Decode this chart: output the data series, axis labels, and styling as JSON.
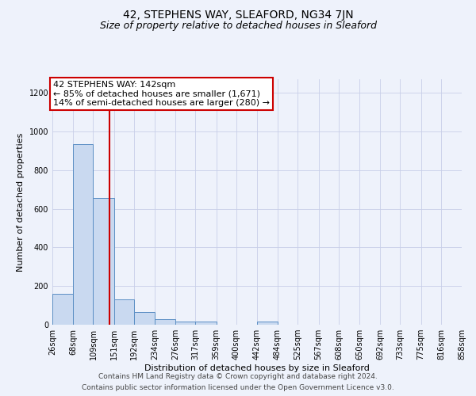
{
  "title": "42, STEPHENS WAY, SLEAFORD, NG34 7JN",
  "subtitle": "Size of property relative to detached houses in Sleaford",
  "xlabel": "Distribution of detached houses by size in Sleaford",
  "ylabel": "Number of detached properties",
  "bin_edges": [
    26,
    68,
    109,
    151,
    192,
    234,
    276,
    317,
    359,
    400,
    442,
    484,
    525,
    567,
    608,
    650,
    692,
    733,
    775,
    816,
    858
  ],
  "bar_heights": [
    160,
    935,
    655,
    130,
    65,
    30,
    15,
    15,
    0,
    0,
    15,
    0,
    0,
    0,
    0,
    0,
    0,
    0,
    0,
    0
  ],
  "bar_color": "#c9d9f0",
  "bar_edge_color": "#5b8ec4",
  "red_line_x": 142,
  "red_line_color": "#cc0000",
  "ylim": [
    0,
    1270
  ],
  "annotation_title": "42 STEPHENS WAY: 142sqm",
  "annotation_line1": "← 85% of detached houses are smaller (1,671)",
  "annotation_line2": "14% of semi-detached houses are larger (280) →",
  "annotation_box_color": "#ffffff",
  "annotation_border_color": "#cc0000",
  "background_color": "#eef2fb",
  "footer_line1": "Contains HM Land Registry data © Crown copyright and database right 2024.",
  "footer_line2": "Contains public sector information licensed under the Open Government Licence v3.0.",
  "grid_color": "#c8cfe8",
  "title_fontsize": 10,
  "subtitle_fontsize": 9,
  "axis_label_fontsize": 8,
  "tick_fontsize": 7,
  "annotation_fontsize": 8,
  "footer_fontsize": 6.5,
  "yticks": [
    0,
    200,
    400,
    600,
    800,
    1000,
    1200
  ]
}
